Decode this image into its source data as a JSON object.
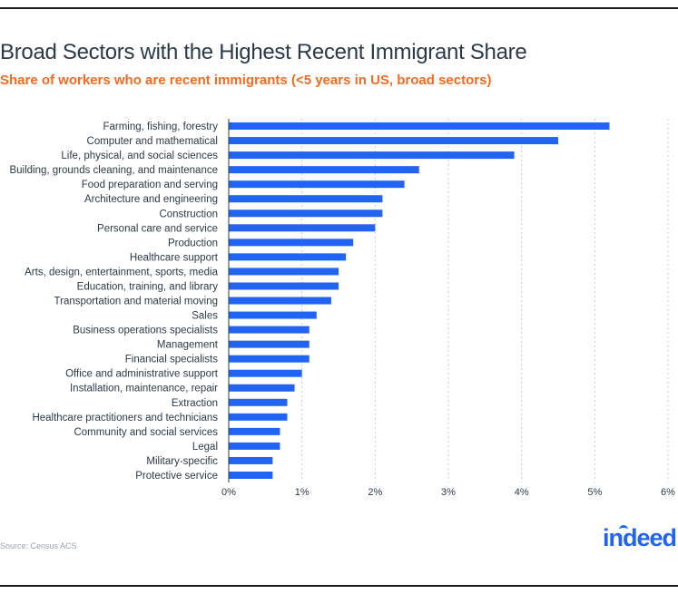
{
  "title": "Broad Sectors with the Highest Recent Immigrant Share",
  "subtitle": "Share of workers who are recent immigrants (<5 years in US, broad sectors)",
  "source": "Source: Census ACS",
  "logo_text": "indeed",
  "colors": {
    "bar": "#2164f3",
    "title": "#2b3a4a",
    "subtitle": "#f26b21",
    "label": "#2b3a4a"
  },
  "chart_data": {
    "type": "bar",
    "orientation": "horizontal",
    "title": "Broad Sectors with the Highest Recent Immigrant Share",
    "subtitle": "Share of workers who are recent immigrants (<5 years in US, broad sectors)",
    "categories": [
      "Farming, fishing, forestry",
      "Computer and mathematical",
      "Life, physical, and social sciences",
      "Building, grounds cleaning, and maintenance",
      "Food preparation and serving",
      "Architecture and engineering",
      "Construction",
      "Personal care and service",
      "Production",
      "Healthcare support",
      "Arts, design, entertainment, sports, media",
      "Education, training, and library",
      "Transportation and material moving",
      "Sales",
      "Business operations specialists",
      "Management",
      "Financial specialists",
      "Office and administrative support",
      "Installation, maintenance, repair",
      "Extraction",
      "Healthcare practitioners and technicians",
      "Community and social services",
      "Legal",
      "Military-specific",
      "Protective service"
    ],
    "values": [
      5.2,
      4.5,
      3.9,
      2.6,
      2.4,
      2.1,
      2.1,
      2.0,
      1.7,
      1.6,
      1.5,
      1.5,
      1.4,
      1.2,
      1.1,
      1.1,
      1.1,
      1.0,
      0.9,
      0.8,
      0.8,
      0.7,
      0.7,
      0.6,
      0.6
    ],
    "xlim": [
      0,
      6
    ],
    "xticks": [
      "0%",
      "1%",
      "2%",
      "3%",
      "4%",
      "5%",
      "6%"
    ],
    "xlabel": "",
    "ylabel": "",
    "grid": "vertical dashed"
  }
}
